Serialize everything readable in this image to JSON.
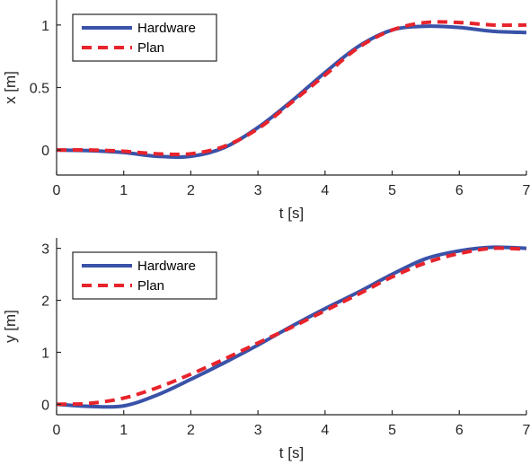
{
  "chart_data": [
    {
      "type": "line",
      "xlabel": "t [s]",
      "ylabel": "x [m]",
      "xlim": [
        0,
        7
      ],
      "ylim": [
        -0.2,
        1.2
      ],
      "xticks": [
        "0",
        "1",
        "2",
        "3",
        "4",
        "5",
        "6",
        "7"
      ],
      "yticks": [
        "0",
        "0.5",
        "1"
      ],
      "legend_position": "top-left",
      "series": [
        {
          "name": "Hardware",
          "style": "solid",
          "color": "#3a52a8",
          "x": [
            0,
            0.5,
            1,
            1.5,
            2,
            2.5,
            3,
            3.5,
            4,
            4.5,
            5,
            5.5,
            6,
            6.5,
            7
          ],
          "y": [
            0.0,
            -0.005,
            -0.02,
            -0.05,
            -0.05,
            0.02,
            0.18,
            0.39,
            0.62,
            0.83,
            0.96,
            0.99,
            0.98,
            0.95,
            0.94
          ]
        },
        {
          "name": "Plan",
          "style": "dashed",
          "color": "#e8232b",
          "x": [
            0,
            0.5,
            1,
            1.5,
            2,
            2.5,
            3,
            3.5,
            4,
            4.5,
            5,
            5.5,
            6,
            6.5,
            7
          ],
          "y": [
            0.0,
            0.0,
            -0.01,
            -0.03,
            -0.03,
            0.03,
            0.17,
            0.38,
            0.6,
            0.82,
            0.96,
            1.02,
            1.02,
            1.0,
            1.0
          ]
        }
      ]
    },
    {
      "type": "line",
      "xlabel": "t [s]",
      "ylabel": "y [m]",
      "xlim": [
        0,
        7
      ],
      "ylim": [
        -0.2,
        3.2
      ],
      "xticks": [
        "0",
        "1",
        "2",
        "3",
        "4",
        "5",
        "6",
        "7"
      ],
      "yticks": [
        "0",
        "1",
        "2",
        "3"
      ],
      "legend_position": "top-left",
      "series": [
        {
          "name": "Hardware",
          "style": "solid",
          "color": "#3a52a8",
          "x": [
            0,
            0.5,
            1,
            1.5,
            2,
            2.5,
            3,
            3.5,
            4,
            4.5,
            5,
            5.5,
            6,
            6.5,
            7
          ],
          "y": [
            0.0,
            -0.04,
            -0.03,
            0.18,
            0.48,
            0.8,
            1.14,
            1.5,
            1.84,
            2.16,
            2.5,
            2.8,
            2.95,
            3.02,
            3.0
          ]
        },
        {
          "name": "Plan",
          "style": "dashed",
          "color": "#e8232b",
          "x": [
            0,
            0.5,
            1,
            1.5,
            2,
            2.5,
            3,
            3.5,
            4,
            4.5,
            5,
            5.5,
            6,
            6.5,
            7
          ],
          "y": [
            0.0,
            0.02,
            0.12,
            0.32,
            0.58,
            0.87,
            1.18,
            1.48,
            1.8,
            2.12,
            2.45,
            2.72,
            2.9,
            3.0,
            2.98
          ]
        }
      ]
    }
  ]
}
